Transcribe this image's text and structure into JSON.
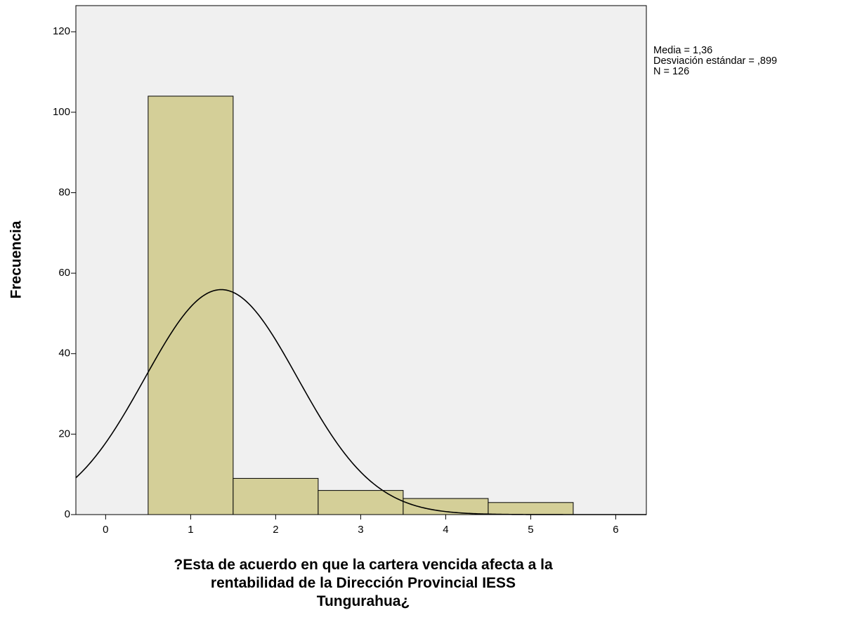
{
  "chart_data": {
    "type": "histogram",
    "ylabel": "Frecuencia",
    "xlabel": [
      "?Esta de acuerdo en que la cartera vencida afecta a la",
      "rentabilidad de la Dirección Provincial IESS",
      "Tungurahua¿"
    ],
    "bins": [
      0.5,
      1.5,
      2.5,
      3.5,
      4.5,
      5.5
    ],
    "values": [
      104,
      9,
      6,
      4,
      3
    ],
    "color": "#d4cf98",
    "background": "#f0f0f0",
    "xlim": [
      -0.35,
      6.36
    ],
    "ylim": [
      0,
      126.5
    ],
    "xticks": [
      0,
      1,
      2,
      3,
      4,
      5,
      6
    ],
    "yticks": [
      0,
      20,
      40,
      60,
      80,
      100,
      120
    ],
    "normal_curve": true,
    "stats": [
      {
        "label": "Media = 1,36",
        "value": 1.36
      },
      {
        "label": "Desviación estándar = ,899",
        "value": 0.899
      },
      {
        "label": "N = 126",
        "value": 126
      }
    ]
  }
}
